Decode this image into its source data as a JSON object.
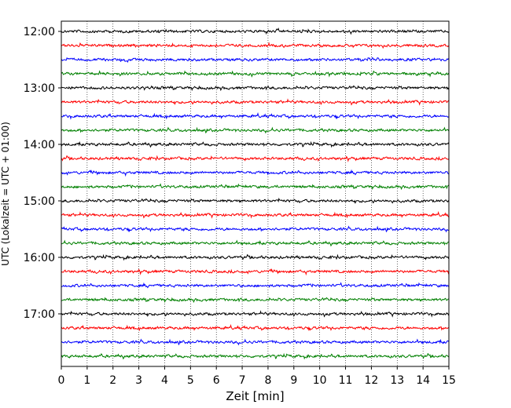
{
  "chart_data": {
    "type": "line",
    "title": "",
    "xlabel": "Zeit  [min]",
    "ylabel": "UTC (Lokalzeit = UTC + 01:00)",
    "xlim": [
      0,
      15
    ],
    "x_ticks": [
      "0",
      "1",
      "2",
      "3",
      "4",
      "5",
      "6",
      "7",
      "8",
      "9",
      "10",
      "11",
      "12",
      "13",
      "14",
      "15"
    ],
    "y_ticks": [
      "12:00",
      "13:00",
      "14:00",
      "15:00",
      "16:00",
      "17:00"
    ],
    "grid": "vertical dotted at each minute",
    "trace_interval_min": 15,
    "color_cycle": [
      "#000000",
      "#ff0000",
      "#0000ff",
      "#008000"
    ],
    "series": [
      {
        "start": "12:00",
        "color": "#000000"
      },
      {
        "start": "12:15",
        "color": "#ff0000"
      },
      {
        "start": "12:30",
        "color": "#0000ff"
      },
      {
        "start": "12:45",
        "color": "#008000"
      },
      {
        "start": "13:00",
        "color": "#000000"
      },
      {
        "start": "13:15",
        "color": "#ff0000"
      },
      {
        "start": "13:30",
        "color": "#0000ff"
      },
      {
        "start": "13:45",
        "color": "#008000"
      },
      {
        "start": "14:00",
        "color": "#000000"
      },
      {
        "start": "14:15",
        "color": "#ff0000"
      },
      {
        "start": "14:30",
        "color": "#0000ff"
      },
      {
        "start": "14:45",
        "color": "#008000"
      },
      {
        "start": "15:00",
        "color": "#000000"
      },
      {
        "start": "15:15",
        "color": "#ff0000"
      },
      {
        "start": "15:30",
        "color": "#0000ff"
      },
      {
        "start": "15:45",
        "color": "#008000"
      },
      {
        "start": "16:00",
        "color": "#000000"
      },
      {
        "start": "16:15",
        "color": "#ff0000"
      },
      {
        "start": "16:30",
        "color": "#0000ff"
      },
      {
        "start": "16:45",
        "color": "#008000"
      },
      {
        "start": "17:00",
        "color": "#000000"
      },
      {
        "start": "17:15",
        "color": "#ff0000"
      },
      {
        "start": "17:30",
        "color": "#0000ff"
      },
      {
        "start": "17:45",
        "color": "#008000"
      }
    ]
  }
}
